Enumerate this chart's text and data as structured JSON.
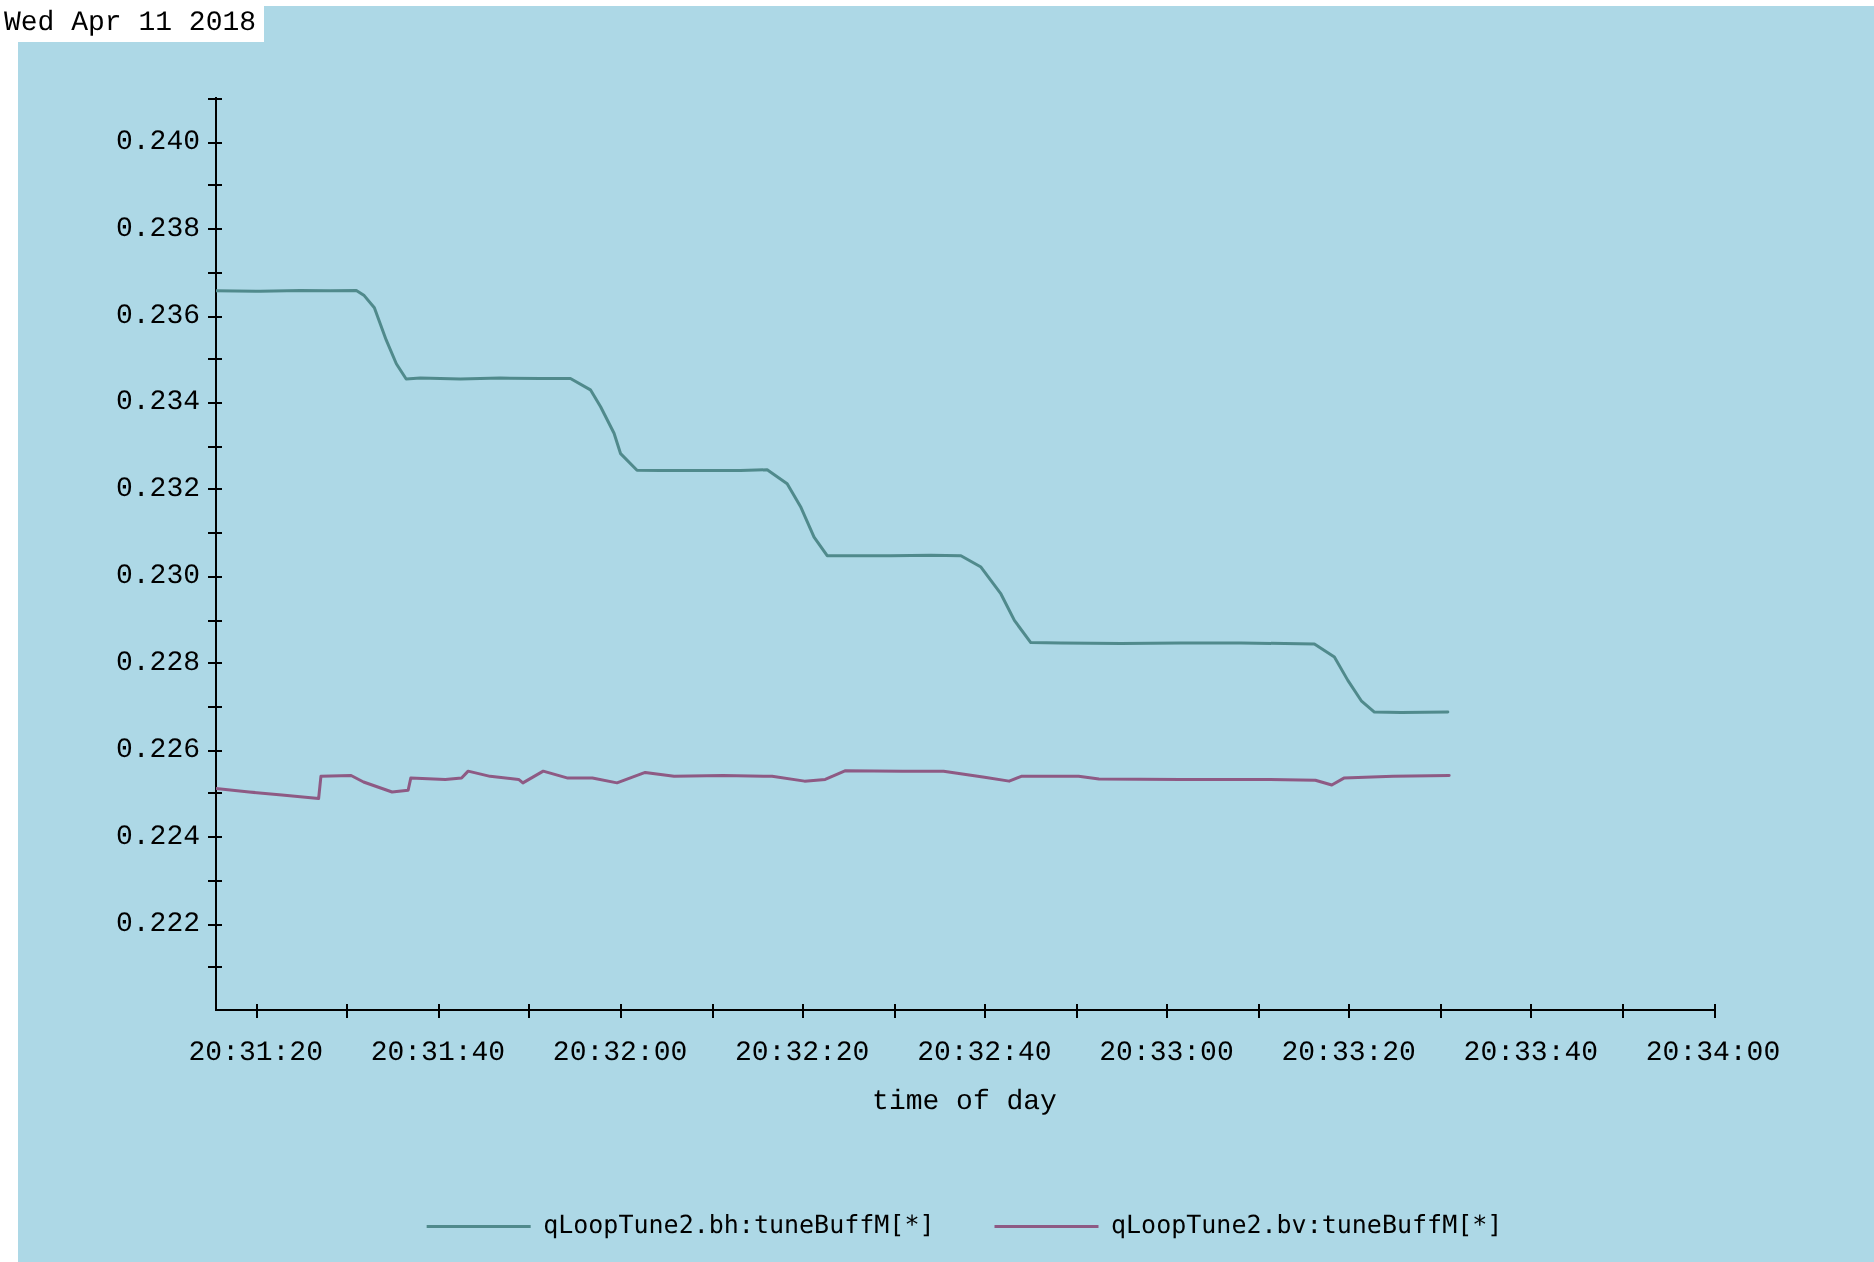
{
  "chart_data": {
    "type": "line",
    "title": "Wed Apr 11 2018",
    "xlabel": "time of day",
    "xlim": [
      20.52101,
      20.566667
    ],
    "xticks": [
      {
        "value": 20.522222,
        "label": "20:31:20"
      },
      {
        "value": 20.525,
        "label": null
      },
      {
        "value": 20.527778,
        "label": "20:31:40"
      },
      {
        "value": 20.530556,
        "label": null
      },
      {
        "value": 20.533333,
        "label": "20:32:00"
      },
      {
        "value": 20.536111,
        "label": null
      },
      {
        "value": 20.538889,
        "label": "20:32:20"
      },
      {
        "value": 20.541667,
        "label": null
      },
      {
        "value": 20.544444,
        "label": "20:32:40"
      },
      {
        "value": 20.547222,
        "label": null
      },
      {
        "value": 20.55,
        "label": "20:33:00"
      },
      {
        "value": 20.552778,
        "label": null
      },
      {
        "value": 20.555556,
        "label": "20:33:20"
      },
      {
        "value": 20.558333,
        "label": null
      },
      {
        "value": 20.561111,
        "label": "20:33:40"
      },
      {
        "value": 20.563889,
        "label": null
      },
      {
        "value": 20.566667,
        "label": "20:34:00"
      }
    ],
    "ylim": [
      0.22,
      0.241
    ],
    "yticks": [
      {
        "value": 0.221,
        "label": null
      },
      {
        "value": 0.222,
        "label": "0.222"
      },
      {
        "value": 0.223,
        "label": null
      },
      {
        "value": 0.224,
        "label": "0.224"
      },
      {
        "value": 0.225,
        "label": null
      },
      {
        "value": 0.226,
        "label": "0.226"
      },
      {
        "value": 0.227,
        "label": null
      },
      {
        "value": 0.228,
        "label": "0.228"
      },
      {
        "value": 0.229,
        "label": null
      },
      {
        "value": 0.23,
        "label": "0.230"
      },
      {
        "value": 0.231,
        "label": null
      },
      {
        "value": 0.232,
        "label": "0.232"
      },
      {
        "value": 0.233,
        "label": null
      },
      {
        "value": 0.234,
        "label": "0.234"
      },
      {
        "value": 0.235,
        "label": null
      },
      {
        "value": 0.236,
        "label": "0.236"
      },
      {
        "value": 0.237,
        "label": null
      },
      {
        "value": 0.238,
        "label": "0.238"
      },
      {
        "value": 0.239,
        "label": null
      },
      {
        "value": 0.24,
        "label": "0.240"
      },
      {
        "value": 0.241,
        "label": null
      }
    ],
    "grid": false,
    "legend": "bottom",
    "marker": "none",
    "line_style": "solid",
    "series": [
      {
        "name": "qLoopTune2.bh:tuneBuffM[*]",
        "color": "#508a8c",
        "x": [
          20.52101,
          20.52236,
          20.52358,
          20.52449,
          20.52529,
          20.52553,
          20.52584,
          20.5262,
          20.52651,
          20.52681,
          20.52724,
          20.52846,
          20.52968,
          20.5309,
          20.53182,
          20.53243,
          20.53274,
          20.53315,
          20.53335,
          20.53385,
          20.53457,
          20.53579,
          20.53701,
          20.53782,
          20.53843,
          20.53884,
          20.53925,
          20.53965,
          20.54037,
          20.54159,
          20.54281,
          20.54373,
          20.54434,
          20.54495,
          20.54536,
          20.54586,
          20.54678,
          20.54861,
          20.55044,
          20.55227,
          20.55451,
          20.55512,
          20.55553,
          20.55594,
          20.55634,
          20.55716,
          20.55858
        ],
        "values": [
          0.23656,
          0.23655,
          0.23657,
          0.23656,
          0.23657,
          0.23645,
          0.23617,
          0.23543,
          0.23488,
          0.23453,
          0.23455,
          0.23453,
          0.23455,
          0.23454,
          0.23454,
          0.23428,
          0.23389,
          0.23328,
          0.23281,
          0.23243,
          0.23242,
          0.23242,
          0.23242,
          0.23244,
          0.23212,
          0.23159,
          0.23089,
          0.23046,
          0.23046,
          0.23046,
          0.23047,
          0.23046,
          0.2302,
          0.22958,
          0.22897,
          0.22846,
          0.22845,
          0.22844,
          0.22845,
          0.22845,
          0.22843,
          0.22813,
          0.22759,
          0.22712,
          0.22686,
          0.22685,
          0.22686
        ]
      },
      {
        "name": "qLoopTune2.bv:tuneBuffM[*]",
        "color": "#8e5a84",
        "x": [
          20.52101,
          20.52202,
          20.52302,
          20.52414,
          20.52421,
          20.52513,
          20.52551,
          20.52638,
          20.52687,
          20.52695,
          20.528,
          20.5285,
          20.5287,
          20.52937,
          20.53024,
          20.53037,
          20.53099,
          20.53174,
          20.53249,
          20.53324,
          20.5341,
          20.53498,
          20.53647,
          20.53797,
          20.53896,
          20.53959,
          20.54021,
          20.54195,
          20.5432,
          20.54445,
          20.5452,
          20.54557,
          20.54732,
          20.54794,
          20.55043,
          20.55292,
          20.55454,
          20.55504,
          20.55541,
          20.55691,
          20.55862
        ],
        "values": [
          0.2251,
          0.22502,
          0.22495,
          0.22487,
          0.22538,
          0.2254,
          0.22525,
          0.22502,
          0.22506,
          0.22534,
          0.22531,
          0.22534,
          0.2255,
          0.22538,
          0.22531,
          0.22523,
          0.2255,
          0.22534,
          0.22534,
          0.22523,
          0.22547,
          0.22538,
          0.2254,
          0.22538,
          0.22527,
          0.22531,
          0.22551,
          0.2255,
          0.2255,
          0.22536,
          0.22527,
          0.22538,
          0.22538,
          0.22532,
          0.22531,
          0.22531,
          0.22529,
          0.22518,
          0.22534,
          0.22538,
          0.2254
        ]
      }
    ]
  }
}
